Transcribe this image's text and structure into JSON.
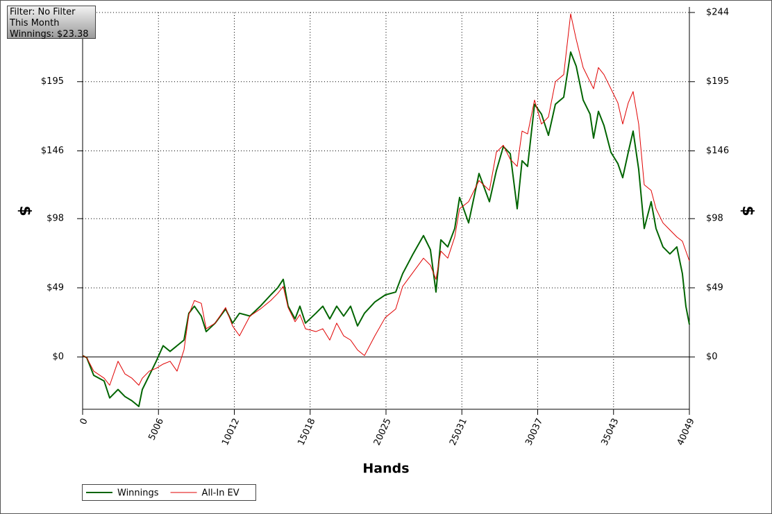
{
  "info_box": [
    "Filter: No Filter",
    "This Month",
    "Winnings: $23.38"
  ],
  "chart_data": {
    "type": "line",
    "x_label": "Hands",
    "y_label": "$",
    "y2_label": "$",
    "xlim": [
      0,
      40049
    ],
    "xticks": [
      0,
      5006,
      10012,
      15018,
      20025,
      25031,
      30037,
      35043,
      40049
    ],
    "ylim": [
      -37,
      244
    ],
    "yticks": [
      {
        "value": 0,
        "label": "$0"
      },
      {
        "value": 49,
        "label": "$49"
      },
      {
        "value": 98,
        "label": "$98"
      },
      {
        "value": 146,
        "label": "$146"
      },
      {
        "value": 195,
        "label": "$195"
      },
      {
        "value": 244,
        "label": "$244"
      }
    ],
    "grid": true,
    "x": [
      0,
      275,
      733,
      1420,
      1787,
      2337,
      2795,
      3253,
      3711,
      3940,
      4399,
      4857,
      5315,
      5773,
      6232,
      6690,
      7011,
      7377,
      7835,
      8156,
      8752,
      9439,
      9897,
      10355,
      11043,
      11730,
      12417,
      12876,
      13242,
      13563,
      14022,
      14342,
      14709,
      15396,
      15854,
      16312,
      16771,
      17229,
      17687,
      18145,
      18603,
      19290,
      19978,
      20665,
      21123,
      21811,
      22498,
      22956,
      23323,
      23644,
      24102,
      24560,
      24881,
      25477,
      26164,
      26851,
      27309,
      27768,
      28226,
      28684,
      29005,
      29371,
      29829,
      30288,
      30746,
      31204,
      31754,
      32212,
      32578,
      33037,
      33495,
      33724,
      34045,
      34411,
      34869,
      35328,
      35648,
      36015,
      36335,
      36702,
      37068,
      37526,
      37847,
      38305,
      38763,
      39221,
      39588,
      39817,
      40049
    ],
    "series": [
      {
        "name": "Winnings",
        "color": "#006400",
        "width": 2,
        "values": [
          1,
          -0.5,
          -13,
          -17,
          -29,
          -23,
          -28,
          -31,
          -35,
          -23,
          -13,
          -3,
          8,
          4,
          8,
          12,
          31,
          36,
          29,
          18,
          24,
          34,
          24,
          31,
          29,
          36,
          44,
          49,
          55,
          36,
          27,
          36,
          24,
          31,
          36,
          27,
          36,
          29,
          36,
          22,
          31,
          39,
          44,
          46,
          59,
          73,
          86,
          76,
          46,
          83,
          78,
          91,
          113,
          95,
          130,
          110,
          132,
          149,
          144,
          105,
          139,
          135,
          179,
          172,
          157,
          179,
          184,
          216,
          206,
          182,
          172,
          155,
          174,
          164,
          145,
          137,
          127,
          145,
          160,
          133,
          91,
          110,
          91,
          78,
          73,
          78,
          59,
          36,
          23
        ]
      },
      {
        "name": "All-In EV",
        "color": "#e00000",
        "width": 1,
        "values": [
          1,
          -0.5,
          -10,
          -15,
          -20,
          -3,
          -12,
          -15,
          -20,
          -15,
          -10,
          -8,
          -5,
          -3,
          -10,
          5,
          30,
          40,
          38,
          20,
          24,
          35,
          22,
          15,
          29,
          34,
          40,
          45,
          50,
          35,
          25,
          30,
          20,
          18,
          20,
          12,
          24,
          15,
          12,
          5,
          1,
          15,
          28,
          34,
          50,
          60,
          70,
          65,
          55,
          75,
          70,
          85,
          105,
          110,
          125,
          118,
          145,
          150,
          140,
          135,
          160,
          158,
          182,
          165,
          170,
          195,
          200,
          243,
          225,
          205,
          195,
          190,
          205,
          200,
          190,
          180,
          165,
          180,
          188,
          165,
          122,
          118,
          105,
          95,
          90,
          85,
          82,
          75,
          68
        ]
      }
    ]
  }
}
